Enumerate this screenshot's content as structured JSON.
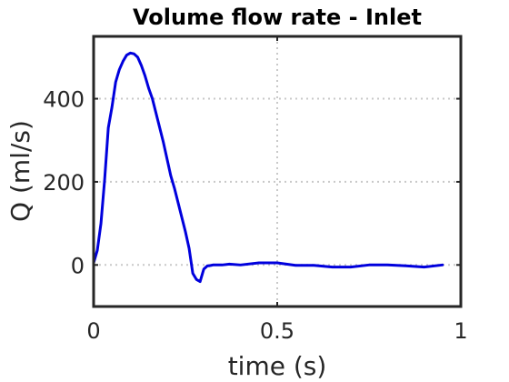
{
  "chart_data": {
    "type": "line",
    "title": "Volume flow rate - Inlet",
    "xlabel": "time (s)",
    "ylabel": "Q (ml/s)",
    "xlim": [
      0,
      1
    ],
    "ylim": [
      -100,
      550
    ],
    "xticks": [
      0,
      0.5,
      1
    ],
    "xtick_labels": [
      "0",
      "0.5",
      "1"
    ],
    "yticks": [
      0,
      200,
      400
    ],
    "ytick_labels": [
      "0",
      "200",
      "400"
    ],
    "grid": true,
    "series": [
      {
        "color": "#0000dd",
        "x": [
          0.0,
          0.01,
          0.02,
          0.03,
          0.04,
          0.05,
          0.06,
          0.07,
          0.08,
          0.09,
          0.1,
          0.11,
          0.12,
          0.13,
          0.14,
          0.15,
          0.16,
          0.17,
          0.18,
          0.19,
          0.2,
          0.21,
          0.22,
          0.23,
          0.24,
          0.25,
          0.26,
          0.27,
          0.28,
          0.29,
          0.3,
          0.31,
          0.315,
          0.32,
          0.325,
          0.33,
          0.34,
          0.35,
          0.37,
          0.4,
          0.45,
          0.5,
          0.55,
          0.6,
          0.65,
          0.7,
          0.75,
          0.8,
          0.85,
          0.9,
          0.95
        ],
        "y": [
          5,
          35,
          100,
          205,
          330,
          380,
          440,
          470,
          490,
          505,
          510,
          508,
          500,
          480,
          455,
          425,
          400,
          365,
          330,
          295,
          255,
          215,
          185,
          150,
          115,
          80,
          40,
          -20,
          -35,
          -40,
          -10,
          -2,
          -2,
          -1,
          0,
          0,
          0,
          0,
          2,
          0,
          5,
          5,
          -1,
          -1,
          -5,
          -5,
          0,
          0,
          -2,
          -5,
          0
        ]
      }
    ]
  }
}
